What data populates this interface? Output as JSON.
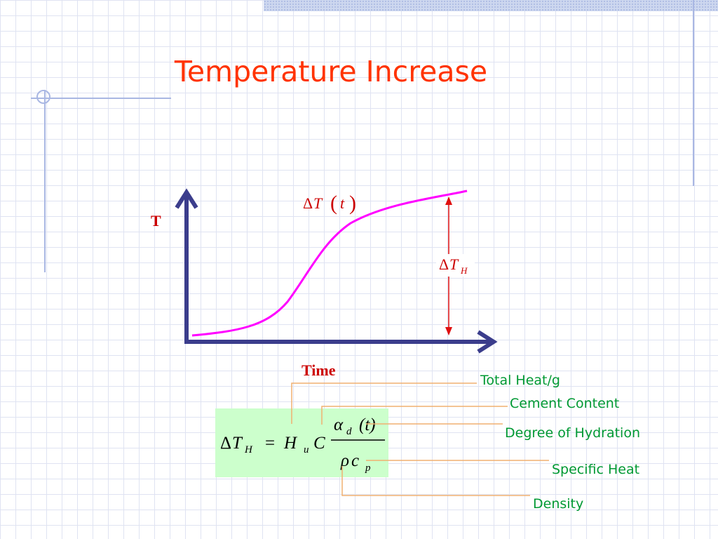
{
  "slide": {
    "title": "Temperature Increase"
  },
  "graph": {
    "y_axis_label": "T",
    "x_axis_label": "Time",
    "curve_label": {
      "delta": "Δ",
      "var": "T",
      "open": "(",
      "arg": "t",
      "close": ")"
    },
    "rise_label": {
      "delta": "Δ",
      "var": "T",
      "sub": "H"
    }
  },
  "formula": {
    "lhs_delta": "Δ",
    "lhs_var": "T",
    "lhs_sub": "H",
    "equals": "=",
    "H_var": "H",
    "H_sub": "u",
    "C_var": "C",
    "alpha": "α",
    "alpha_sub": "d",
    "alpha_arg": "(t)",
    "rho": "ρ",
    "c_var": "c",
    "c_sub": "p"
  },
  "callouts": {
    "total_heat": "Total Heat/g",
    "cement_content": "Cement Content",
    "degree_of_hydration": "Degree of Hydration",
    "specific_heat": "Specific Heat",
    "density": "Density"
  },
  "colors": {
    "title": "#ff3300",
    "axes": "#3b3d8c",
    "curve": "#ff00ff",
    "arrow": "#e01010",
    "label_red": "#cc0000",
    "callout_text": "#009933",
    "leader": "#f0b070",
    "formula_bg": "#ccffcc"
  }
}
